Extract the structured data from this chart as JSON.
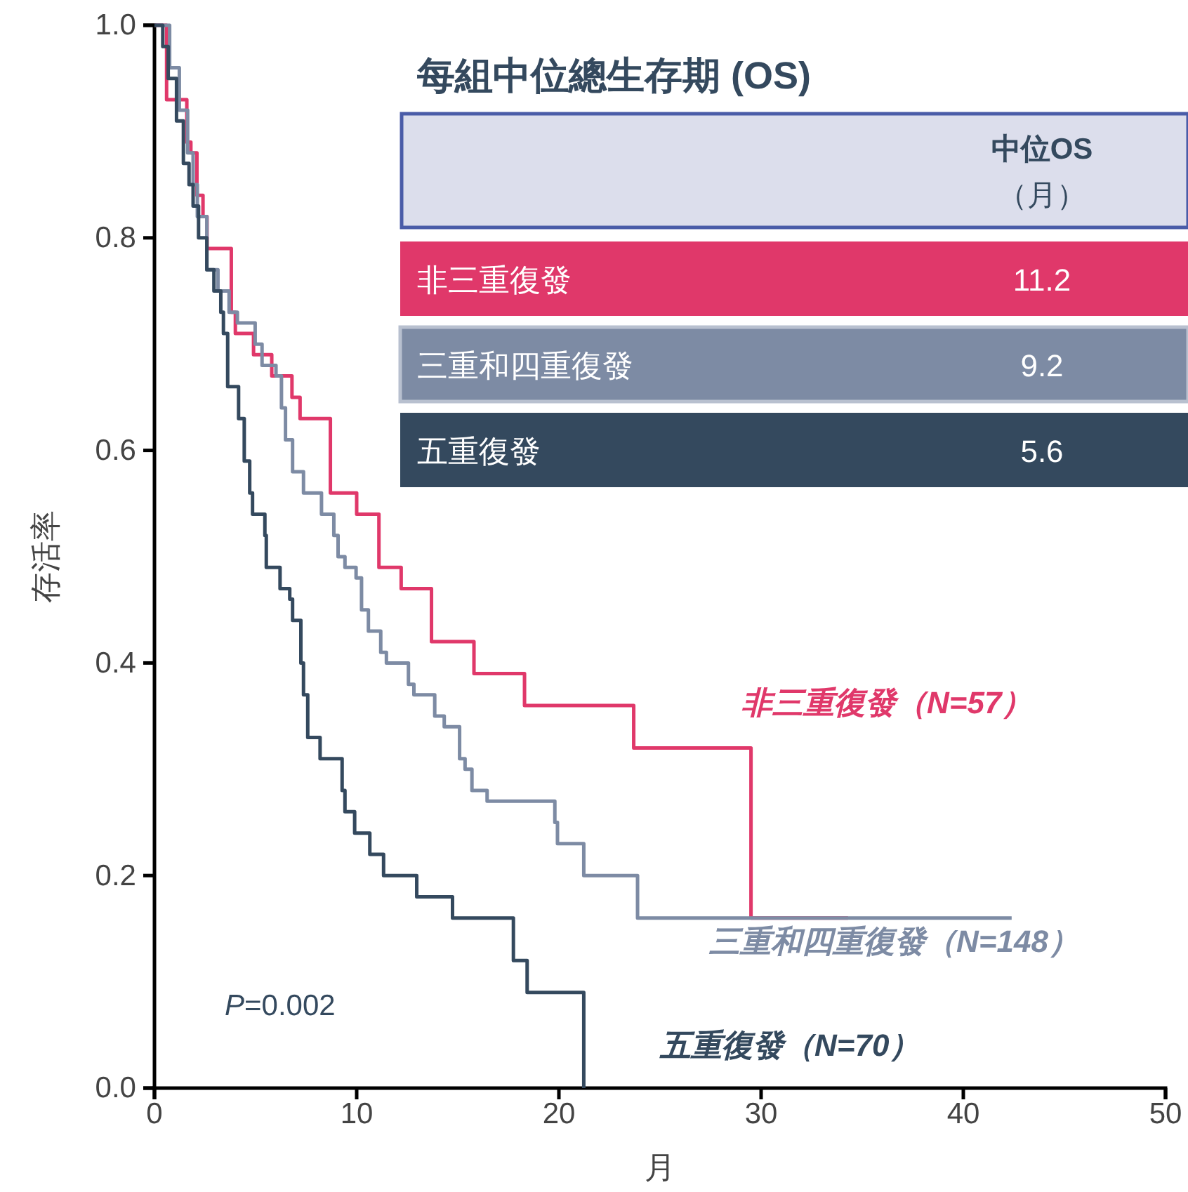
{
  "chart_data": {
    "type": "step",
    "xlabel": "月",
    "ylabel": "存活率",
    "xlim": [
      0,
      50
    ],
    "xticks": [
      0,
      10,
      20,
      30,
      40,
      50
    ],
    "ylim": [
      0,
      1
    ],
    "yticks": [
      {
        "value": 0,
        "label": "0.0"
      },
      0.2,
      0.4,
      0.6,
      0.8,
      {
        "value": 1,
        "label": "1.0"
      }
    ],
    "grid": false,
    "legend": false,
    "line_style": "solid",
    "annotations": [
      "每組中位總生存期 (OS)",
      "中位OS",
      "（月）",
      "非三重復發",
      "11.2",
      "三重和四重復發",
      "9.2",
      "五重復發",
      "5.6",
      "P=0.002"
    ],
    "series": [
      {
        "name": "非三重復發（N=57）",
        "color": "#e0386a",
        "x": [
          0,
          0.6,
          1.6,
          1.8,
          2.1,
          2.4,
          2.6,
          3.8,
          4.0,
          4.9,
          5.8,
          6.8,
          7.2,
          8.7,
          10.0,
          11.1,
          12.2,
          13.7,
          15.8,
          18.3,
          23.7,
          29.5,
          34.3
        ],
        "values": [
          1.0,
          0.93,
          0.89,
          0.88,
          0.84,
          0.82,
          0.79,
          0.73,
          0.71,
          0.69,
          0.67,
          0.65,
          0.63,
          0.56,
          0.54,
          0.49,
          0.47,
          0.42,
          0.39,
          0.36,
          0.32,
          0.16,
          0.16
        ]
      },
      {
        "name": "三重和四重復發（N=148）",
        "color": "#7d8ba4",
        "x": [
          0,
          0.75,
          1.23,
          1.64,
          1.91,
          2.12,
          2.59,
          3.14,
          3.69,
          4.1,
          4.98,
          5.32,
          6.01,
          6.28,
          6.48,
          6.83,
          7.37,
          8.26,
          8.87,
          9.08,
          9.42,
          9.97,
          10.24,
          10.58,
          11.19,
          11.47,
          12.56,
          12.83,
          13.86,
          14.33,
          15.09,
          15.36,
          15.7,
          16.45,
          19.8,
          19.93,
          21.23,
          23.89,
          42.39
        ],
        "values": [
          1.0,
          0.96,
          0.92,
          0.88,
          0.85,
          0.82,
          0.77,
          0.75,
          0.73,
          0.72,
          0.7,
          0.68,
          0.67,
          0.64,
          0.61,
          0.58,
          0.56,
          0.54,
          0.52,
          0.5,
          0.49,
          0.48,
          0.45,
          0.43,
          0.41,
          0.4,
          0.38,
          0.37,
          0.35,
          0.34,
          0.31,
          0.3,
          0.28,
          0.27,
          0.25,
          0.23,
          0.2,
          0.16,
          0.16
        ]
      },
      {
        "name": "五重復發（N=70）",
        "color": "#34495e",
        "x": [
          0,
          0.41,
          0.68,
          1.09,
          1.43,
          1.71,
          1.91,
          2.18,
          2.59,
          2.94,
          3.28,
          3.41,
          3.62,
          4.16,
          4.44,
          4.71,
          4.85,
          5.46,
          5.53,
          6.21,
          6.69,
          6.83,
          7.24,
          7.37,
          7.58,
          8.19,
          9.28,
          9.42,
          9.9,
          10.65,
          11.33,
          12.97,
          14.74,
          17.75,
          18.43,
          21.23
        ],
        "values": [
          1.0,
          0.98,
          0.95,
          0.91,
          0.87,
          0.85,
          0.83,
          0.8,
          0.77,
          0.75,
          0.73,
          0.71,
          0.66,
          0.63,
          0.59,
          0.56,
          0.54,
          0.52,
          0.49,
          0.47,
          0.46,
          0.44,
          0.4,
          0.37,
          0.33,
          0.31,
          0.28,
          0.26,
          0.24,
          0.22,
          0.2,
          0.18,
          0.16,
          0.12,
          0.09,
          0.0
        ]
      }
    ]
  }
}
